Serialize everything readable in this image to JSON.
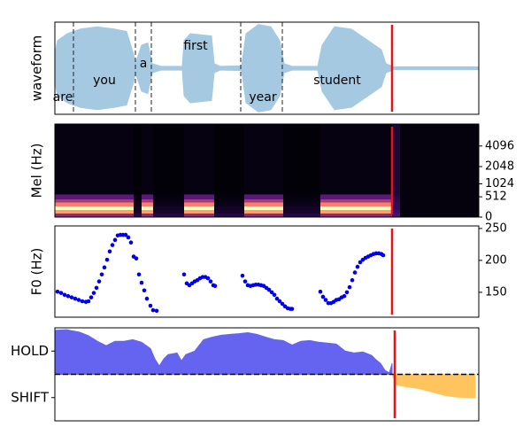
{
  "chart_data": [
    {
      "type": "waveform",
      "ylabel": "waveform",
      "color": "#a6c9e2",
      "xlim": [
        0,
        479
      ],
      "ylim": [
        -1,
        1
      ],
      "x": [
        0,
        3,
        14,
        29,
        48,
        67,
        81,
        89,
        91,
        98,
        105,
        110,
        120,
        144,
        146,
        153,
        177,
        180,
        187,
        211,
        216,
        230,
        244,
        254,
        259,
        268,
        297,
        302,
        316,
        335,
        354,
        369,
        374,
        383,
        479
      ],
      "values": [
        0.3,
        0.6,
        0.75,
        0.85,
        0.9,
        0.85,
        0.8,
        0.3,
        0.1,
        0.5,
        0.55,
        0.1,
        0.04,
        0.04,
        0.6,
        0.75,
        0.7,
        0.1,
        0.04,
        0.05,
        0.75,
        0.95,
        0.9,
        0.6,
        0.1,
        0.04,
        0.04,
        0.5,
        0.9,
        0.85,
        0.6,
        0.4,
        0.1,
        0.03,
        0.03
      ],
      "boundaries": [
        21,
        91,
        109,
        210,
        257
      ],
      "annotations": [
        {
          "text": "are",
          "x": 9,
          "y": -0.63
        },
        {
          "text": "you",
          "x": 56,
          "y": -0.27
        },
        {
          "text": "a",
          "x": 100,
          "y": 0.1
        },
        {
          "text": "first",
          "x": 159,
          "y": 0.48
        },
        {
          "text": "year",
          "x": 235,
          "y": -0.63
        },
        {
          "text": "student",
          "x": 319,
          "y": -0.27
        }
      ],
      "cursor_x": 381,
      "cursor_color": "#ee1111"
    },
    {
      "type": "heatmap",
      "ylabel": "Mel (Hz)",
      "colormap": "magma",
      "xlim": [
        0,
        479
      ],
      "ylim": [
        0,
        8000
      ],
      "yscale": "mel",
      "yticks": [
        0,
        512,
        1024,
        2048,
        4096
      ],
      "ytick_side": "right",
      "x_edges": [
        0,
        89,
        98,
        111,
        146,
        180,
        214,
        258,
        300,
        381,
        390,
        479
      ],
      "y_edges": [
        0,
        80,
        160,
        250,
        350,
        450,
        600,
        8000
      ],
      "z": [
        [
          0.5,
          0.15,
          0.5,
          0.15,
          0.5,
          0.15,
          0.5,
          0.15,
          0.5,
          0.3,
          0.02
        ],
        [
          0.9,
          0.1,
          0.9,
          0.1,
          0.9,
          0.1,
          0.9,
          0.1,
          0.9,
          0.25,
          0.02
        ],
        [
          1.0,
          0.08,
          1.0,
          0.08,
          1.0,
          0.08,
          1.0,
          0.08,
          1.0,
          0.2,
          0.02
        ],
        [
          0.85,
          0.05,
          0.85,
          0.05,
          0.85,
          0.05,
          0.85,
          0.05,
          0.85,
          0.2,
          0.02
        ],
        [
          0.6,
          0.03,
          0.6,
          0.03,
          0.6,
          0.03,
          0.6,
          0.03,
          0.6,
          0.18,
          0.02
        ],
        [
          0.35,
          0.02,
          0.35,
          0.02,
          0.35,
          0.02,
          0.35,
          0.02,
          0.35,
          0.15,
          0.02
        ],
        [
          0.03,
          0.01,
          0.03,
          0.01,
          0.03,
          0.01,
          0.03,
          0.01,
          0.03,
          0.12,
          0.02
        ]
      ],
      "cursor_x": 381,
      "cursor_color": "#ee1111"
    },
    {
      "type": "scatter",
      "ylabel": "F0 (Hz)",
      "color": "#0000ee",
      "xlim": [
        0,
        479
      ],
      "ylim": [
        111,
        254
      ],
      "yticks": [
        150,
        200,
        250
      ],
      "ytick_side": "right",
      "x": [
        3,
        7,
        11,
        15,
        19,
        23,
        27,
        31,
        35,
        38,
        41,
        44,
        47,
        50,
        53,
        56,
        59,
        62,
        65,
        68,
        71,
        74,
        77,
        80,
        83,
        86,
        89,
        92,
        95,
        98,
        101,
        104,
        108,
        111,
        115,
        146,
        149,
        152,
        155,
        158,
        161,
        164,
        167,
        170,
        173,
        176,
        179,
        181,
        212,
        215,
        218,
        221,
        224,
        227,
        230,
        233,
        236,
        239,
        242,
        245,
        248,
        251,
        254,
        257,
        260,
        263,
        266,
        268,
        300,
        303,
        306,
        309,
        312,
        315,
        318,
        321,
        324,
        327,
        330,
        333,
        336,
        339,
        342,
        345,
        348,
        351,
        354,
        357,
        360,
        363,
        366,
        369,
        371
      ],
      "values": [
        151,
        149,
        146,
        144,
        142,
        140,
        138,
        136,
        135,
        136,
        142,
        149,
        157,
        167,
        178,
        189,
        201,
        214,
        224,
        232,
        239,
        240,
        240,
        240,
        236,
        228,
        206,
        203,
        178,
        165,
        153,
        140,
        129,
        122,
        121,
        178,
        164,
        161,
        164,
        167,
        169,
        172,
        174,
        174,
        172,
        167,
        161,
        160,
        176,
        167,
        161,
        160,
        161,
        162,
        162,
        161,
        160,
        157,
        154,
        150,
        146,
        140,
        136,
        132,
        128,
        125,
        124,
        124,
        151,
        143,
        138,
        133,
        133,
        135,
        138,
        139,
        142,
        144,
        150,
        158,
        169,
        181,
        190,
        197,
        201,
        204,
        206,
        208,
        210,
        211,
        211,
        210,
        208
      ],
      "cursor_x": 381,
      "cursor_color": "#ee1111"
    },
    {
      "type": "area",
      "xlim": [
        0,
        479
      ],
      "ylim": [
        -2,
        2
      ],
      "yticks": [
        {
          "value": 1,
          "label": "HOLD"
        },
        {
          "value": -1,
          "label": "SHIFT"
        }
      ],
      "ytick_side": "left",
      "hline": 0,
      "series": [
        {
          "color": "#6464f0",
          "x": [
            0,
            13,
            28,
            38,
            48,
            58,
            68,
            78,
            88,
            98,
            108,
            113,
            118,
            123,
            128,
            138,
            143,
            148,
            158,
            168,
            178,
            188,
            198,
            208,
            218,
            228,
            238,
            248,
            258,
            268,
            278,
            288,
            298,
            308,
            318,
            328,
            338,
            348,
            358,
            363,
            368,
            373,
            378,
            381
          ],
          "values": [
            1.89,
            1.92,
            1.81,
            1.66,
            1.42,
            1.23,
            1.42,
            1.42,
            1.49,
            1.38,
            1.11,
            0.66,
            0.36,
            0.66,
            0.85,
            0.92,
            0.58,
            0.85,
            1.0,
            1.49,
            1.6,
            1.68,
            1.72,
            1.75,
            1.79,
            1.72,
            1.6,
            1.49,
            1.45,
            1.26,
            1.42,
            1.45,
            1.38,
            1.34,
            1.3,
            1.0,
            0.92,
            0.96,
            0.81,
            0.62,
            0.47,
            0.17,
            0.06,
            0.47
          ]
        },
        {
          "color": "#ffc45e",
          "x": [
            381,
            386,
            396,
            410,
            425,
            440,
            455,
            475
          ],
          "values": [
            0,
            -0.45,
            -0.53,
            -0.6,
            -0.75,
            -0.9,
            -0.98,
            -1.0
          ]
        }
      ],
      "cursor_x": 384,
      "cursor_color": "#ee1111"
    }
  ]
}
